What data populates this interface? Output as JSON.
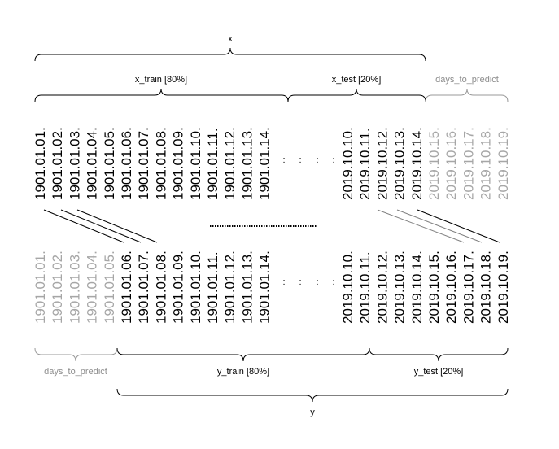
{
  "labels": {
    "x": "x",
    "x_train": "x_train [80%]",
    "x_test": "x_test [20%]",
    "days_to_predict_top": "days_to_predict",
    "days_to_predict_bottom": "days_to_predict",
    "y_train": "y_train [80%]",
    "y_test": "y_test [20%]",
    "y": "y"
  },
  "ellipsis": ":",
  "x_series": {
    "left": [
      "1901.01.01.",
      "1901.01.02.",
      "1901.01.03.",
      "1901.01.04.",
      "1901.01.05.",
      "1901.01.06.",
      "1901.01.07.",
      "1901.01.08.",
      "1901.01.09.",
      "1901.01.10.",
      "1901.01.11.",
      "1901.01.12.",
      "1901.01.13.",
      "1901.01.14."
    ],
    "right": [
      "2019.10.10.",
      "2019.10.11.",
      "2019.10.12.",
      "2019.10.13.",
      "2019.10.14.",
      "2019.10.15.",
      "2019.10.16.",
      "2019.10.17.",
      "2019.10.18.",
      "2019.10.19."
    ]
  },
  "y_series": {
    "left": [
      "1901.01.01.",
      "1901.01.02.",
      "1901.01.03.",
      "1901.01.04.",
      "1901.01.05.",
      "1901.01.06.",
      "1901.01.07.",
      "1901.01.08.",
      "1901.01.09.",
      "1901.01.10.",
      "1901.01.11.",
      "1901.01.12.",
      "1901.01.13.",
      "1901.01.14."
    ],
    "right": [
      "2019.10.10.",
      "2019.10.11.",
      "2019.10.12.",
      "2019.10.13.",
      "2019.10.14.",
      "2019.10.15.",
      "2019.10.16.",
      "2019.10.17.",
      "2019.10.18.",
      "2019.10.19."
    ]
  },
  "colors": {
    "text": "#000000",
    "muted": "#a6a6a6",
    "muted_label": "#8c8c8c"
  }
}
